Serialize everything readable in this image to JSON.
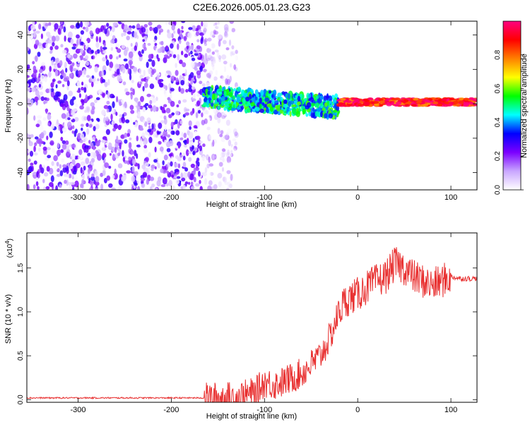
{
  "title": "C2E6.2026.005.01.23.G23",
  "chart_data": [
    {
      "type": "heatmap",
      "xlabel": "Height of straight line (km)",
      "ylabel": "Frequency (Hz)",
      "xlim": [
        -355,
        128
      ],
      "ylim": [
        -50,
        48
      ],
      "xticks": [
        -300,
        -200,
        -100,
        0,
        100
      ],
      "yticks": [
        -40,
        -20,
        0,
        20,
        40
      ],
      "colorbar": {
        "label": "Normalized spectral amplitude",
        "range": [
          0,
          1
        ],
        "ticks": [
          0.0,
          0.2,
          0.4,
          0.6,
          0.8
        ],
        "tick_labels": [
          "0.0",
          "0.2",
          "0.4",
          "0.6",
          "0.8"
        ],
        "colors": [
          "#ffffff",
          "#c9a6ff",
          "#7b00ff",
          "#0000ff",
          "#00ffff",
          "#00ff00",
          "#ffff00",
          "#ff8000",
          "#ff0000",
          "#ff0080"
        ]
      },
      "regions": [
        {
          "x_range": [
            -355,
            -165
          ],
          "y_range": [
            -50,
            48
          ],
          "amplitude": 0.15
        },
        {
          "x_range": [
            -165,
            -130
          ],
          "y_range": [
            -50,
            48
          ],
          "amplitude": 0.05
        },
        {
          "x_range": [
            -165,
            -20
          ],
          "y_range": [
            -8,
            10
          ],
          "amplitude": 0.45
        },
        {
          "x_range": [
            -20,
            128
          ],
          "y_range": [
            -2,
            4
          ],
          "amplitude": 0.9
        }
      ]
    },
    {
      "type": "line",
      "xlabel": "Height of straight line (km)",
      "ylabel": "SNR (10 * v/v)",
      "y_scale_note": "(x10",
      "y_scale_exp": "4",
      "xlim": [
        -355,
        128
      ],
      "ylim": [
        -0.03,
        1.9
      ],
      "xticks": [
        -300,
        -200,
        -100,
        0,
        100
      ],
      "yticks": [
        0.0,
        0.5,
        1.0,
        1.5
      ],
      "ytick_labels": [
        "0.0",
        "0.5",
        "1.0",
        "1.5"
      ],
      "color": "#e83030",
      "series": [
        {
          "x": [
            -355,
            -300,
            -250,
            -200,
            -160,
            -130,
            -110,
            -100,
            -90,
            -80,
            -70,
            -60,
            -50,
            -40,
            -30,
            -25,
            -20,
            -15,
            -10,
            0,
            10,
            20,
            30,
            40,
            50,
            60,
            70,
            80,
            90,
            100,
            110,
            128
          ],
          "y": [
            0.02,
            0.02,
            0.02,
            0.02,
            0.02,
            0.03,
            0.08,
            0.2,
            0.17,
            0.2,
            0.25,
            0.3,
            0.4,
            0.5,
            0.7,
            0.85,
            1.0,
            1.1,
            1.15,
            1.2,
            1.28,
            1.35,
            1.4,
            1.55,
            1.5,
            1.4,
            1.35,
            1.3,
            1.35,
            1.4,
            1.38,
            1.38
          ]
        }
      ]
    }
  ]
}
